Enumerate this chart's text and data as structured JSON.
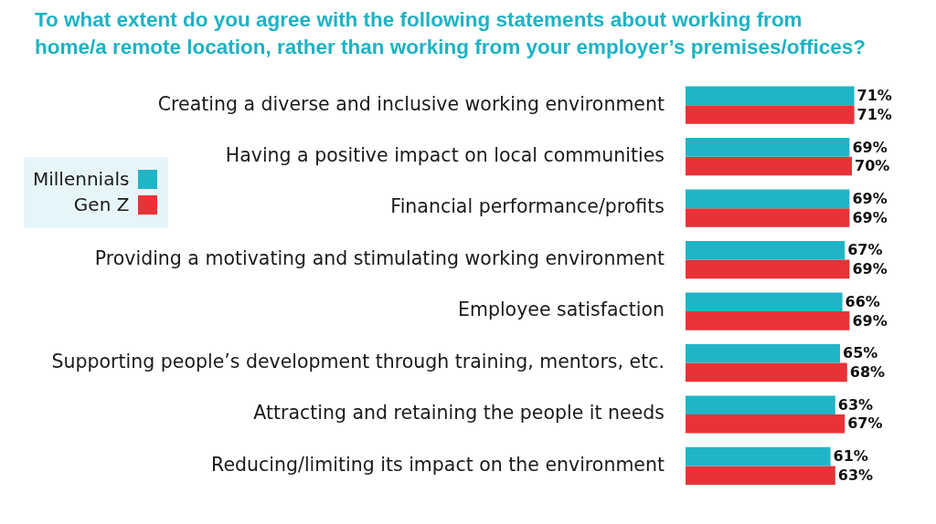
{
  "chart_data": {
    "type": "bar",
    "orientation": "horizontal",
    "title": "To what extent do you agree with the following statements about working from home/a remote location, rather than working from your employer’s premises/offices?",
    "categories": [
      "Creating a diverse and inclusive working environment",
      "Having a positive impact on local communities",
      "Financial performance/profits",
      "Providing a motivating and stimulating working environment",
      "Employee satisfaction",
      "Supporting people’s development through training, mentors, etc.",
      "Attracting and retaining the people it needs",
      "Reducing/limiting its impact on the environment"
    ],
    "series": [
      {
        "name": "Millennials",
        "color": "#20b5c6",
        "values": [
          71,
          69,
          69,
          67,
          66,
          65,
          63,
          61
        ],
        "value_labels": [
          "71%",
          "69%",
          "69%",
          "67%",
          "66%",
          "65%",
          "63%",
          "61%"
        ]
      },
      {
        "name": "Gen Z",
        "color": "#e83237",
        "values": [
          71,
          70,
          69,
          69,
          69,
          68,
          67,
          63
        ],
        "value_labels": [
          "71%",
          "70%",
          "69%",
          "69%",
          "69%",
          "68%",
          "67%",
          "63%"
        ]
      }
    ],
    "tick_labels": "y",
    "legend": "top left"
  }
}
